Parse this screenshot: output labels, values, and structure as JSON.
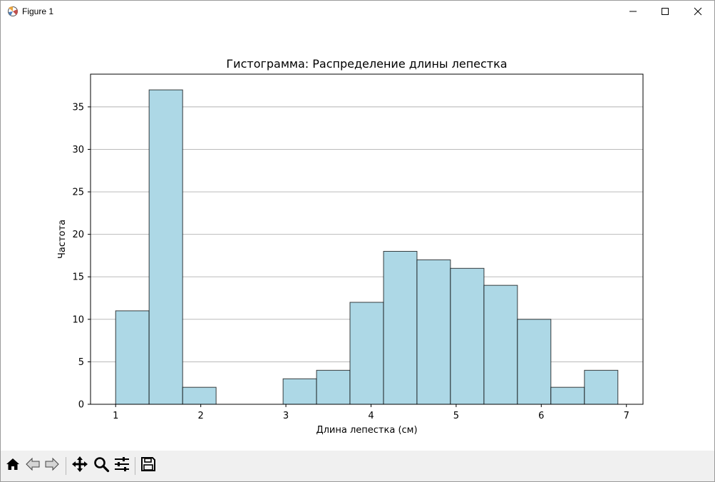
{
  "window": {
    "title": "Figure 1",
    "icons": {
      "app": "matplotlib-figure-icon",
      "minimize": "minimize-icon",
      "maximize": "maximize-icon",
      "close": "close-icon"
    }
  },
  "toolbar": {
    "buttons": [
      {
        "name": "home",
        "icon": "home-icon"
      },
      {
        "name": "back",
        "icon": "back-arrow-icon"
      },
      {
        "name": "forward",
        "icon": "forward-arrow-icon"
      },
      {
        "name": "pan",
        "icon": "move-icon"
      },
      {
        "name": "zoom",
        "icon": "zoom-icon"
      },
      {
        "name": "configure",
        "icon": "sliders-icon"
      },
      {
        "name": "save",
        "icon": "save-icon"
      }
    ]
  },
  "chart_data": {
    "type": "bar",
    "title": "Гистограмма: Распределение длины лепестка",
    "xlabel": "Длина лепестка (см)",
    "ylabel": "Частота",
    "bin_edges": [
      1.0,
      1.393,
      1.787,
      2.18,
      2.573,
      2.967,
      3.36,
      3.753,
      4.147,
      4.54,
      4.933,
      5.327,
      5.72,
      6.113,
      6.507,
      6.9
    ],
    "values": [
      11,
      37,
      2,
      0,
      0,
      3,
      4,
      12,
      18,
      17,
      16,
      14,
      10,
      2,
      4
    ],
    "xlim": [
      0.705,
      7.195
    ],
    "ylim": [
      0,
      38.85
    ],
    "xticks": [
      "1",
      "2",
      "3",
      "4",
      "5",
      "6",
      "7"
    ],
    "yticks": [
      "0",
      "5",
      "10",
      "15",
      "20",
      "25",
      "30",
      "35"
    ],
    "grid": "y",
    "colors": {
      "bar_fill": "#add8e6",
      "bar_edge": "#000000",
      "grid": "#b0b0b0"
    }
  }
}
